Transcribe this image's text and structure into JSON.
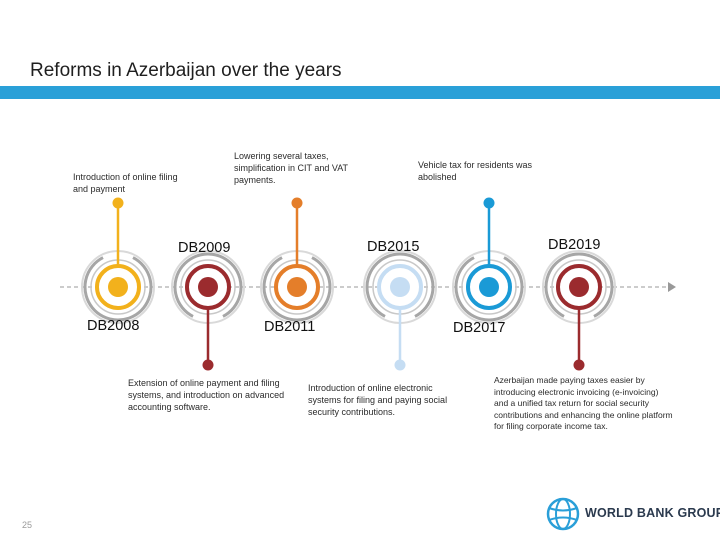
{
  "slide": {
    "title": "Reforms in Azerbaijan over the years",
    "page_number": "25",
    "logo_text": "WORLD BANK GROUP"
  },
  "colors": {
    "title_bar": "#2aa0d8",
    "DB2008": "#f2b11c",
    "DB2009": "#9b2b2e",
    "DB2011": "#e47e2a",
    "DB2015": "#c5ddf3",
    "DB2017": "#1a9ad6",
    "DB2019": "#9b2b2e",
    "ring": "#a6a6a6",
    "axis": "#999999"
  },
  "milestones": [
    {
      "label": "DB2008",
      "note": "Introduction of online filing and payment"
    },
    {
      "label": "DB2009",
      "note": "Extension of online payment and filing systems, and introduction on advanced accounting software."
    },
    {
      "label": "DB2011",
      "note": "Lowering several taxes, simplification in CIT and VAT payments."
    },
    {
      "label": "DB2015",
      "note": "Introduction of online electronic systems for filing and paying social security contributions."
    },
    {
      "label": "DB2017",
      "note": "Vehicle tax for residents was abolished"
    },
    {
      "label": "DB2019",
      "note": "Azerbaijan made paying taxes easier by introducing electronic invoicing (e-invoicing) and a unified tax return for social security contributions and enhancing the online platform for filing corporate income tax."
    }
  ]
}
